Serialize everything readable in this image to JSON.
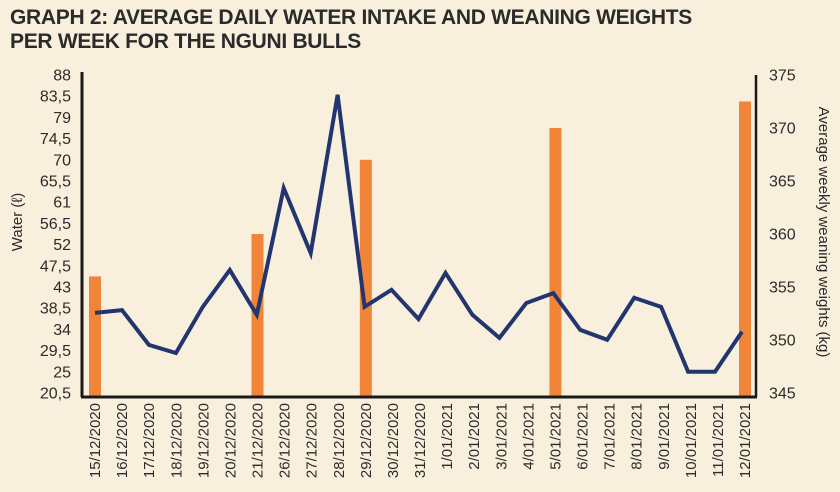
{
  "chart_data": {
    "type": "bar+line",
    "title_line1": "GRAPH 2: AVERAGE DAILY WATER INTAKE AND WEANING WEIGHTS",
    "title_line2": "PER WEEK FOR THE NGUNI BULLS",
    "ylabel_left": "Water (ℓ)",
    "ylabel_right": "Average weekly weaning weights (kg)",
    "xlabel": "",
    "categories": [
      "15/12/2020",
      "16/12/2020",
      "17/12/2020",
      "18/12/2020",
      "19/12/2020",
      "20/12/2020",
      "21/12/2020",
      "26/12/2020",
      "27/12/2020",
      "28/12/2020",
      "29/12/2020",
      "30/12/2020",
      "31/12/2020",
      "1/01/2021",
      "2/01/2021",
      "3/01/2021",
      "4/01/2021",
      "5/01/2021",
      "6/01/2021",
      "7/01/2021",
      "8/01/2021",
      "9/01/2021",
      "10/01/2021",
      "11/01/2021",
      "12/01/2021"
    ],
    "left_axis": {
      "ylim": [
        20.5,
        88
      ],
      "tick_labels": [
        "88",
        "83,5",
        "79",
        "74,5",
        "70",
        "65,5",
        "61",
        "56,5",
        "52",
        "47,5",
        "43",
        "38,5",
        "34",
        "29,5",
        "25",
        "20,5"
      ],
      "tick_values": [
        88,
        83.5,
        79,
        74.5,
        70,
        65.5,
        61,
        56.5,
        52,
        47.5,
        43,
        38.5,
        34,
        29.5,
        25,
        20.5
      ]
    },
    "right_axis": {
      "ylim": [
        345,
        375
      ],
      "tick_labels": [
        "375",
        "370",
        "365",
        "360",
        "355",
        "350",
        "345"
      ],
      "tick_values": [
        375,
        370,
        365,
        360,
        355,
        350,
        345
      ]
    },
    "series": [
      {
        "name": "Average daily water intake",
        "type": "line",
        "axis": "left",
        "color": "#22356e",
        "values": [
          37.5,
          38.1,
          30.7,
          29.0,
          38.8,
          46.6,
          37.1,
          64.0,
          50.2,
          83.8,
          38.8,
          42.4,
          36.2,
          46.0,
          37.1,
          32.2,
          39.6,
          41.7,
          33.9,
          31.8,
          40.7,
          38.8,
          25.0,
          25.0,
          33.5
        ]
      },
      {
        "name": "Average weekly weaning weight",
        "type": "bar",
        "axis": "right",
        "color": "#f0853a",
        "values": {
          "15/12/2020": 356,
          "21/12/2020": 360,
          "29/12/2020": 367,
          "5/01/2021": 370,
          "12/01/2021": 372.5
        }
      }
    ],
    "grid": false,
    "legend": "none"
  }
}
